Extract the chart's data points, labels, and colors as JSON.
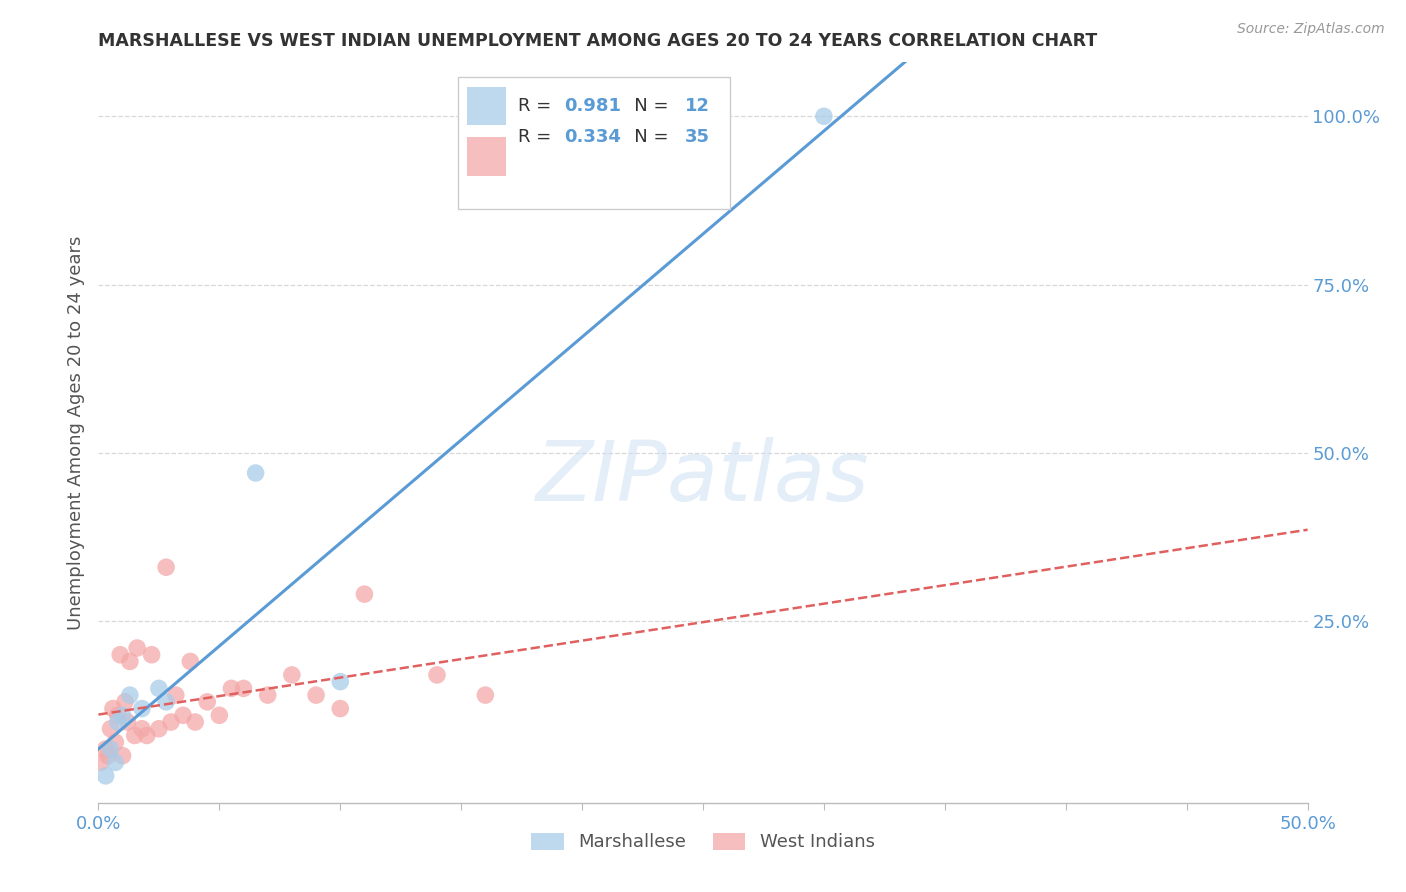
{
  "title": "MARSHALLESE VS WEST INDIAN UNEMPLOYMENT AMONG AGES 20 TO 24 YEARS CORRELATION CHART",
  "source": "Source: ZipAtlas.com",
  "ylabel": "Unemployment Among Ages 20 to 24 years",
  "watermark": "ZIPatlas",
  "xlim": [
    0.0,
    0.5
  ],
  "ylim": [
    -0.02,
    1.08
  ],
  "ytick_labels_right": [
    "100.0%",
    "75.0%",
    "50.0%",
    "25.0%"
  ],
  "ytick_vals_right": [
    1.0,
    0.75,
    0.5,
    0.25
  ],
  "blue_R": "0.981",
  "blue_N": "12",
  "pink_R": "0.334",
  "pink_N": "35",
  "blue_color": "#a8cce8",
  "pink_color": "#f4a8a8",
  "blue_line_color": "#5b9bd5",
  "pink_line_color": "#e06060",
  "legend_entry1": "Marshallese",
  "legend_entry2": "West Indians",
  "blue_scatter_x": [
    0.003,
    0.005,
    0.007,
    0.008,
    0.01,
    0.013,
    0.018,
    0.025,
    0.028,
    0.065,
    0.1,
    0.3
  ],
  "blue_scatter_y": [
    0.02,
    0.06,
    0.04,
    0.1,
    0.11,
    0.14,
    0.12,
    0.15,
    0.13,
    0.47,
    0.16,
    1.0
  ],
  "pink_scatter_x": [
    0.001,
    0.003,
    0.004,
    0.005,
    0.006,
    0.007,
    0.008,
    0.009,
    0.01,
    0.011,
    0.012,
    0.013,
    0.015,
    0.016,
    0.018,
    0.02,
    0.022,
    0.025,
    0.028,
    0.03,
    0.032,
    0.035,
    0.038,
    0.04,
    0.045,
    0.05,
    0.055,
    0.06,
    0.07,
    0.08,
    0.09,
    0.1,
    0.11,
    0.14,
    0.16
  ],
  "pink_scatter_y": [
    0.04,
    0.06,
    0.05,
    0.09,
    0.12,
    0.07,
    0.11,
    0.2,
    0.05,
    0.13,
    0.1,
    0.19,
    0.08,
    0.21,
    0.09,
    0.08,
    0.2,
    0.09,
    0.33,
    0.1,
    0.14,
    0.11,
    0.19,
    0.1,
    0.13,
    0.11,
    0.15,
    0.15,
    0.14,
    0.17,
    0.14,
    0.12,
    0.29,
    0.17,
    0.14
  ],
  "background_color": "#ffffff",
  "grid_color": "#d8d8d8",
  "label_color": "#5b9bd5",
  "title_color": "#333333",
  "source_color": "#999999"
}
